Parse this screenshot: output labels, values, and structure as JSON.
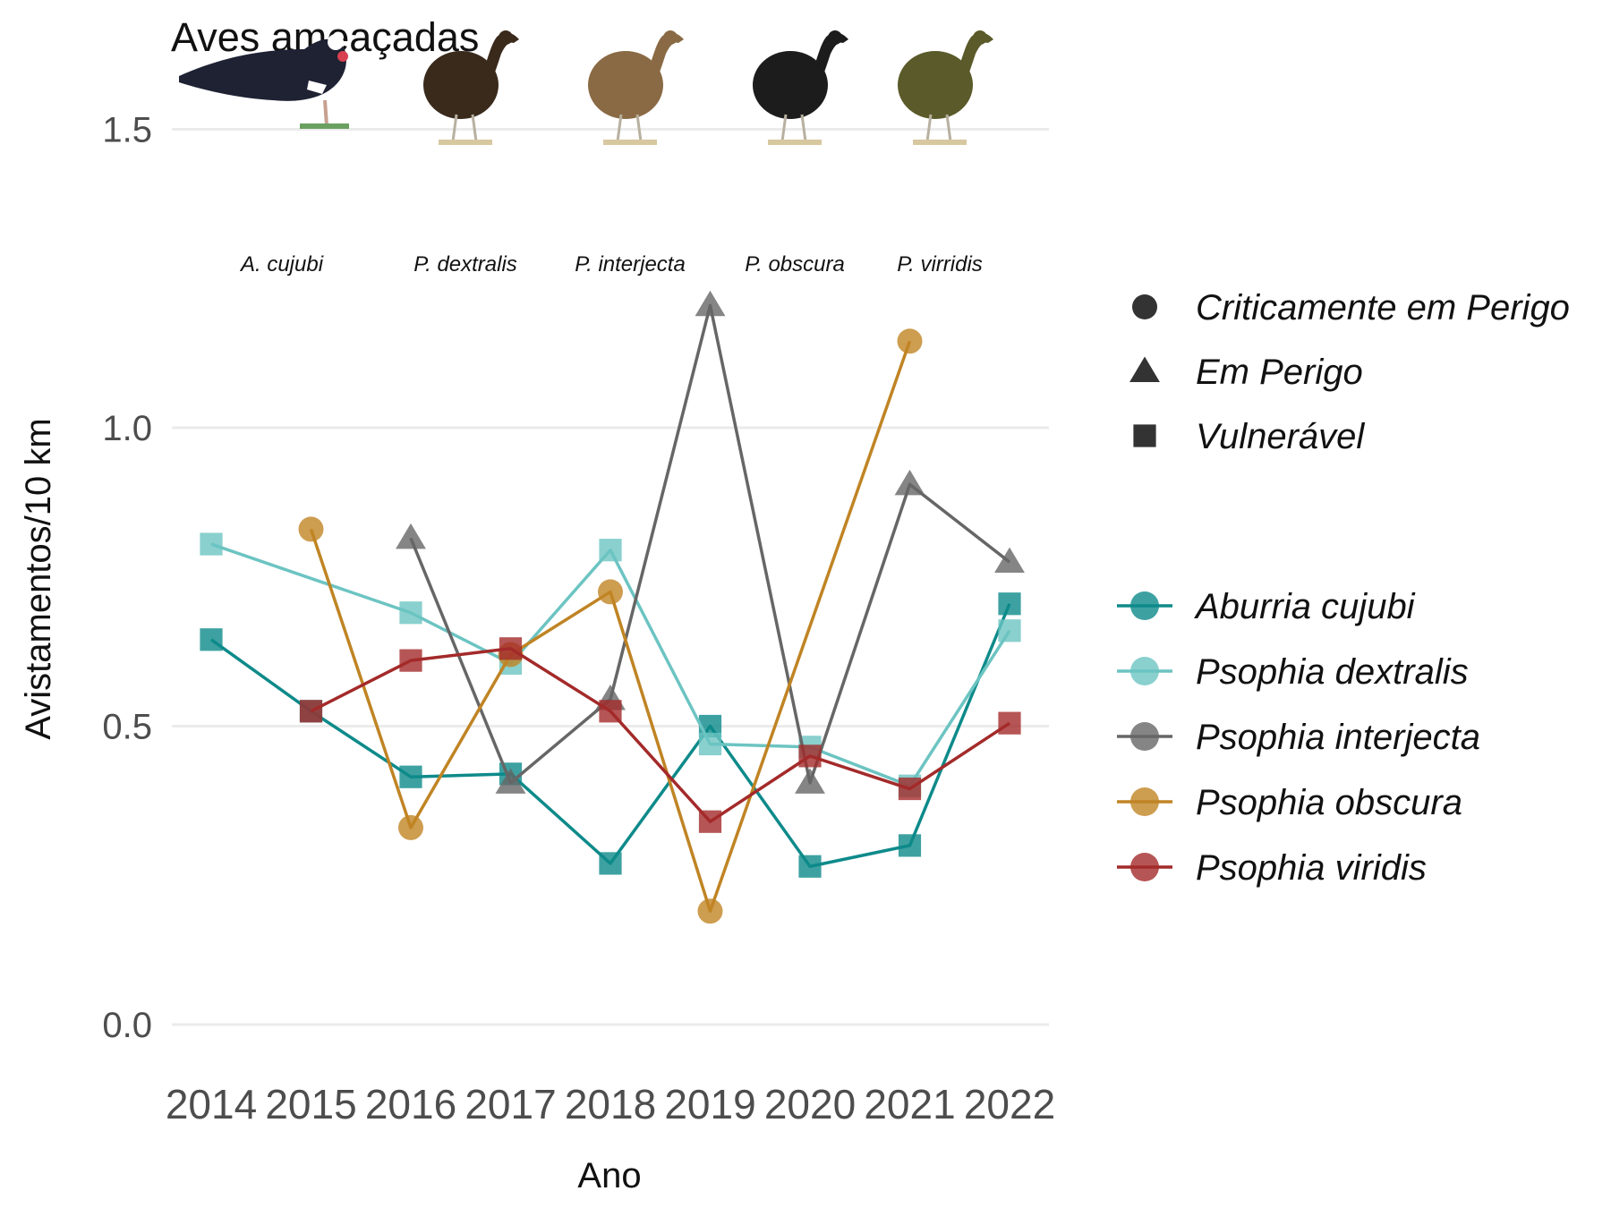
{
  "chart_data": {
    "type": "line",
    "title": "Aves ameaçadas",
    "xlabel": "Ano",
    "ylabel": "Avistamentos/10 km",
    "x": [
      2014,
      2015,
      2016,
      2017,
      2018,
      2019,
      2020,
      2021,
      2022
    ],
    "ylim": [
      -0.1,
      1.6
    ],
    "yticks": [
      0.0,
      0.5,
      1.0,
      1.5
    ],
    "ytick_labels": [
      "0.0",
      "0.5",
      "1.0",
      "1.5"
    ],
    "xtick_labels": [
      "2014",
      "2015",
      "2016",
      "2017",
      "2018",
      "2019",
      "2020",
      "2021",
      "2022"
    ],
    "grid": true,
    "series": [
      {
        "name": "Aburria cujubi",
        "color": "#0e8a8a",
        "shape": "square",
        "values": [
          0.645,
          0.525,
          0.415,
          0.42,
          0.27,
          0.5,
          0.265,
          0.3,
          0.705
        ]
      },
      {
        "name": "Psophia dextralis",
        "color": "#6cc4c2",
        "shape": "square",
        "values": [
          0.805,
          null,
          0.69,
          0.605,
          0.795,
          0.47,
          0.465,
          0.4,
          0.66
        ]
      },
      {
        "name": "Psophia interjecta",
        "color": "#666666",
        "shape": "triangle",
        "values": [
          null,
          null,
          0.815,
          0.405,
          0.545,
          1.205,
          0.405,
          0.905,
          0.775
        ]
      },
      {
        "name": "Psophia obscura",
        "color": "#c08424",
        "shape": "circle",
        "values": [
          null,
          0.83,
          0.33,
          0.62,
          0.725,
          0.19,
          null,
          1.145,
          null
        ]
      },
      {
        "name": "Psophia viridis",
        "color": "#a42a2a",
        "shape": "square",
        "values": [
          null,
          0.525,
          0.61,
          0.63,
          0.525,
          0.34,
          0.45,
          0.395,
          0.505
        ]
      }
    ],
    "shape_legend": [
      {
        "shape": "circle",
        "label": "Criticamente em Perigo"
      },
      {
        "shape": "triangle",
        "label": "Em Perigo"
      },
      {
        "shape": "square",
        "label": "Vulnerável"
      }
    ],
    "legend_placement": "right",
    "bird_images": [
      {
        "label": "A. cujubi",
        "icon": "piping-guan-icon",
        "body_color": "#1e2233"
      },
      {
        "label": "P. dextralis",
        "icon": "trumpeter-icon",
        "body_color": "#3a2a1c"
      },
      {
        "label": "P. interjecta",
        "icon": "trumpeter-icon",
        "body_color": "#8a6a44"
      },
      {
        "label": "P. obscura",
        "icon": "trumpeter-icon",
        "body_color": "#1c1c1c"
      },
      {
        "label": "P. virridis",
        "icon": "trumpeter-icon",
        "body_color": "#5a5a2a"
      }
    ]
  }
}
